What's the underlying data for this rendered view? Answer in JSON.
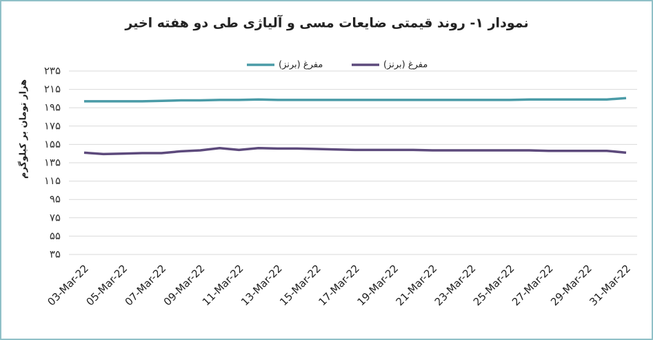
{
  "chart_data": {
    "type": "line",
    "title": "نمودار ۱- روند قیمتی ضایعات مسی و آلیاژی طی دو هفته اخیر",
    "y_label": "هزار تومان بر کیلوگرم",
    "categories": [
      "03-Mar-22",
      null,
      "05-Mar-22",
      null,
      "07-Mar-22",
      null,
      "09-Mar-22",
      null,
      "11-Mar-22",
      null,
      "13-Mar-22",
      null,
      "15-Mar-22",
      null,
      "17-Mar-22",
      null,
      "19-Mar-22",
      null,
      "21-Mar-22",
      null,
      "23-Mar-22",
      null,
      "25-Mar-22",
      null,
      "27-Mar-22",
      null,
      "29-Mar-22",
      null,
      "31-Mar-22"
    ],
    "series": [
      {
        "name": "مفرغ (برنز)",
        "color": "#4a9ba7",
        "values": [
          202,
          202,
          202,
          202,
          202.5,
          203,
          203,
          203.5,
          203.5,
          204,
          203.5,
          203.5,
          203.5,
          203.5,
          203.5,
          203.5,
          203.5,
          203.5,
          203.5,
          203.5,
          203.5,
          203.5,
          203.5,
          204,
          204,
          204,
          204,
          204,
          205.5
        ]
      },
      {
        "name": "مفرغ (برنز)",
        "color": "#5d4a7c",
        "values": [
          146,
          144.5,
          145,
          145.5,
          145.5,
          147.5,
          148.5,
          151,
          149,
          151,
          150.5,
          150.5,
          150,
          149.5,
          149,
          149,
          149,
          149,
          148.5,
          148.5,
          148.5,
          148.5,
          148.5,
          148.5,
          148,
          148,
          148,
          148,
          146
        ]
      }
    ],
    "ylim": [
      35,
      235
    ],
    "yticks": [
      {
        "value": 35,
        "label": "۳۵"
      },
      {
        "value": 55,
        "label": "۵۵"
      },
      {
        "value": 75,
        "label": "۷۵"
      },
      {
        "value": 95,
        "label": "۹۵"
      },
      {
        "value": 115,
        "label": "۱۱۵"
      },
      {
        "value": 135,
        "label": "۱۳۵"
      },
      {
        "value": 155,
        "label": "۱۵۵"
      },
      {
        "value": 175,
        "label": "۱۷۵"
      },
      {
        "value": 195,
        "label": "۱۹۵"
      },
      {
        "value": 215,
        "label": "۲۱۵"
      },
      {
        "value": 235,
        "label": "۲۳۵"
      }
    ],
    "grid": true,
    "legend": "top"
  }
}
